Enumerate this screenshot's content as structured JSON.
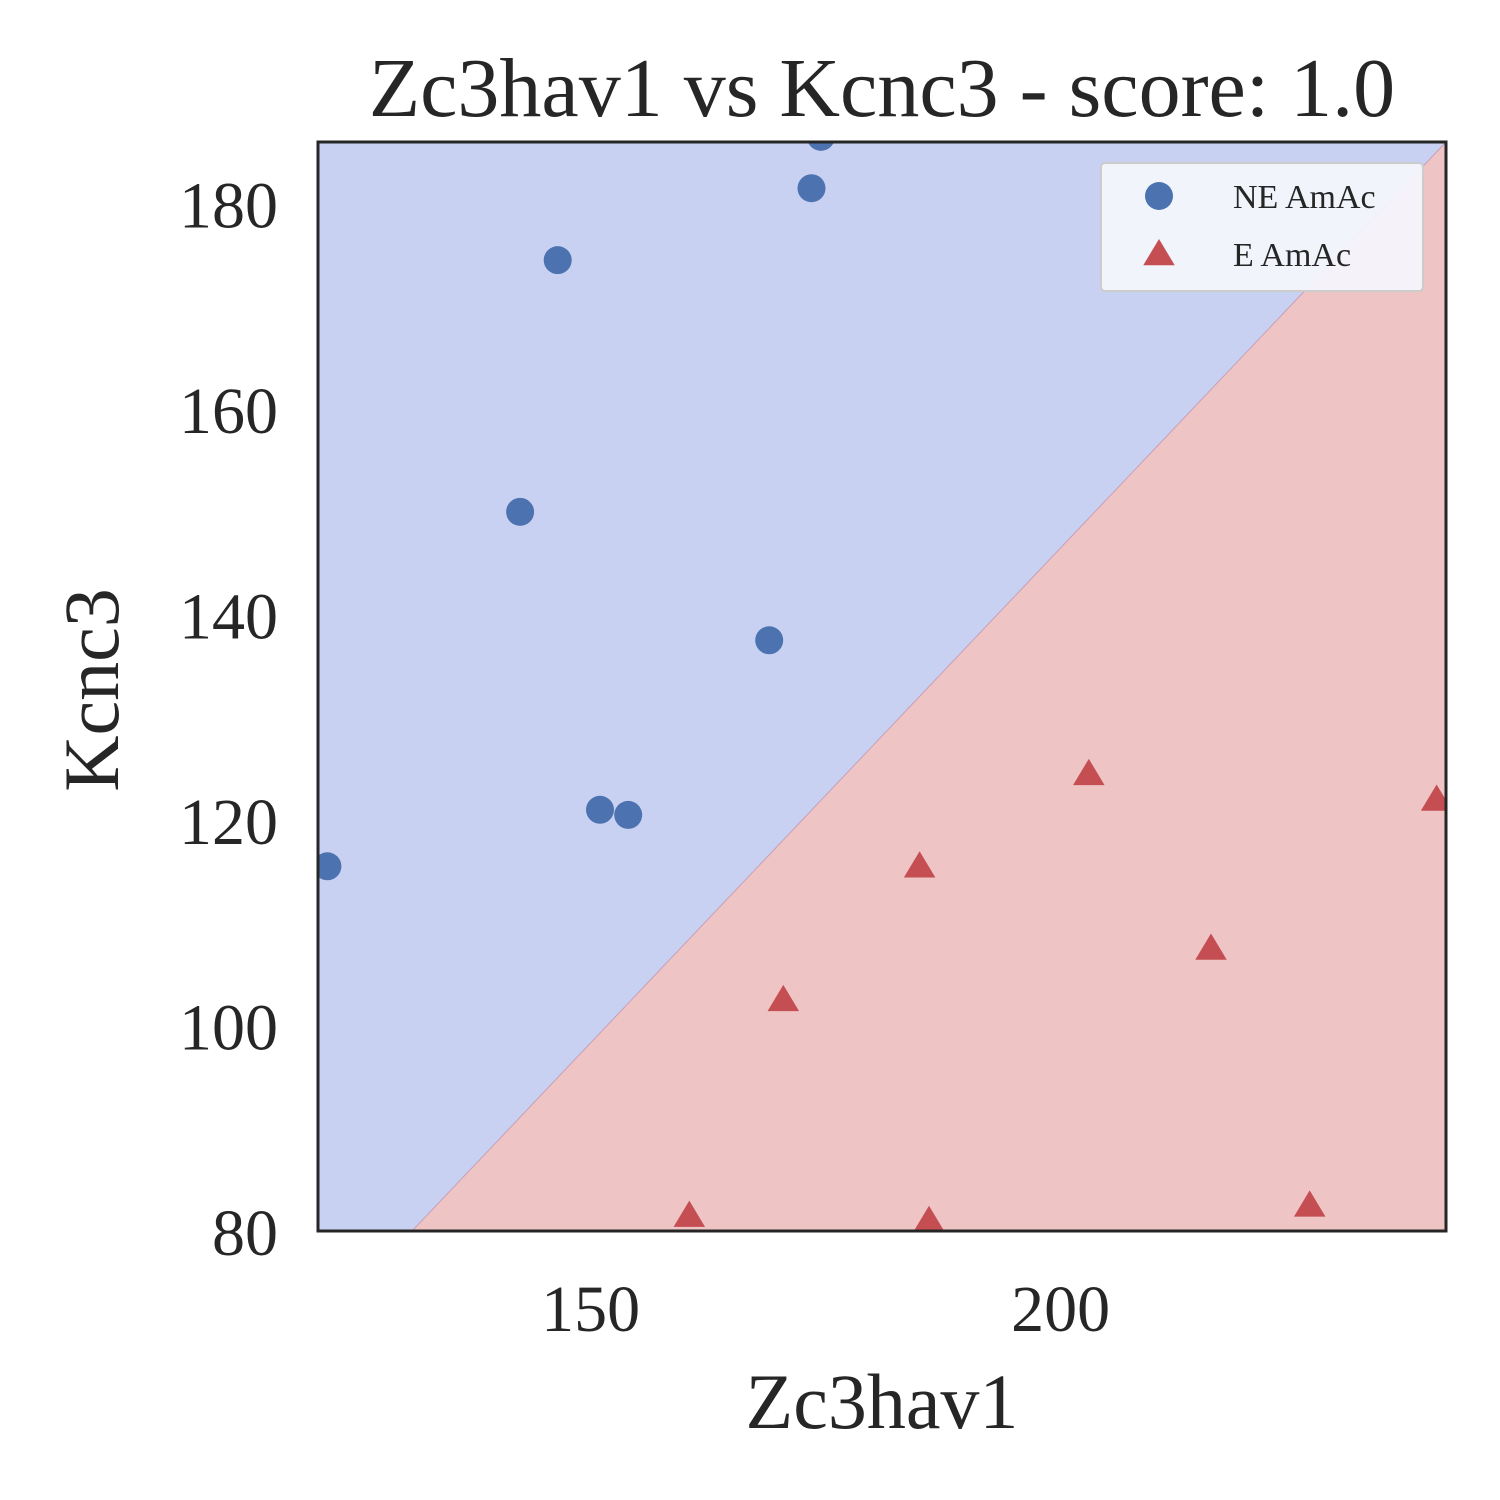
{
  "chart_data": {
    "type": "scatter",
    "title": "Zc3hav1 vs Kcnc3 - score: 1.0",
    "xlabel": "Zc3hav1",
    "ylabel": "Kcnc3",
    "xlim": [
      121,
      241
    ],
    "ylim": [
      80,
      186
    ],
    "xticks": [
      150,
      200
    ],
    "yticks": [
      80,
      100,
      120,
      140,
      160,
      180
    ],
    "grid": false,
    "legend_position": "top-right",
    "decision_boundary": {
      "line": [
        [
          131,
          80
        ],
        [
          241,
          186
        ]
      ],
      "upper_region_class": "NE AmAc",
      "lower_region_class": "E AmAc",
      "upper_color": "#c8d1f2",
      "lower_color": "#efc4c4"
    },
    "series": [
      {
        "name": "NE AmAc",
        "marker": "circle",
        "color": "#4c72b0",
        "points": [
          {
            "x": 122,
            "y": 115.5
          },
          {
            "x": 142.5,
            "y": 150
          },
          {
            "x": 146.5,
            "y": 174.5
          },
          {
            "x": 151,
            "y": 121
          },
          {
            "x": 154,
            "y": 120.5
          },
          {
            "x": 169,
            "y": 137.5
          },
          {
            "x": 173.5,
            "y": 181.5
          },
          {
            "x": 174.5,
            "y": 186.5
          }
        ]
      },
      {
        "name": "E AmAc",
        "marker": "triangle",
        "color": "#c44e52",
        "points": [
          {
            "x": 160.5,
            "y": 81.5
          },
          {
            "x": 170.5,
            "y": 102.5
          },
          {
            "x": 185,
            "y": 115.5
          },
          {
            "x": 186,
            "y": 81
          },
          {
            "x": 203,
            "y": 124.5
          },
          {
            "x": 216,
            "y": 107.5
          },
          {
            "x": 226.5,
            "y": 82.5
          },
          {
            "x": 240,
            "y": 122
          }
        ]
      }
    ]
  }
}
